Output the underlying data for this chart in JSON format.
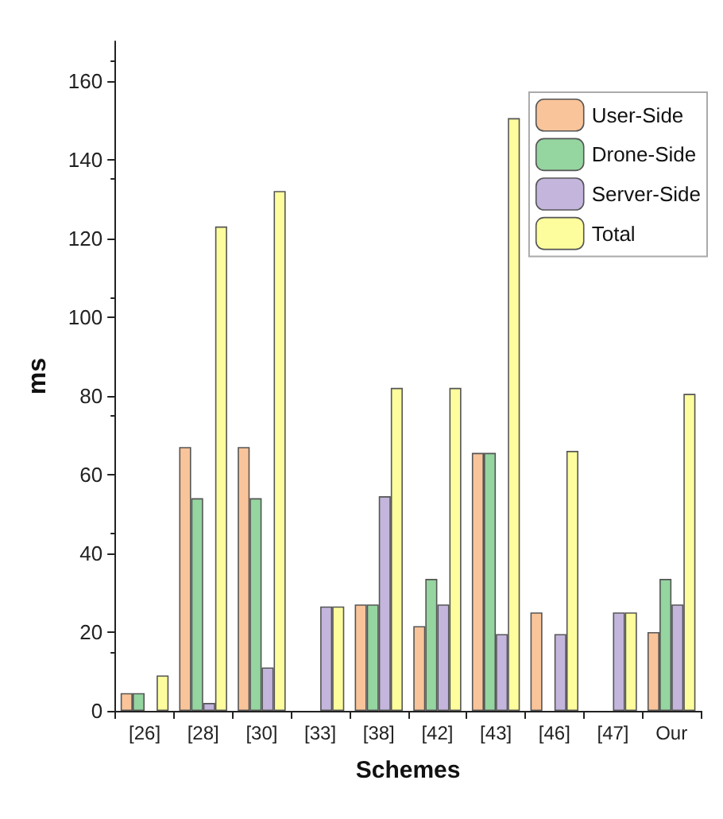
{
  "chart_data": {
    "type": "bar",
    "xlabel": "Schemes",
    "ylabel": "ms",
    "categories": [
      "[26]",
      "[28]",
      "[30]",
      "[33]",
      "[38]",
      "[42]",
      "[43]",
      "[46]",
      "[47]",
      "Our"
    ],
    "series": [
      {
        "name": "User-Side",
        "color": "#f9c49a",
        "values": [
          4.5,
          67,
          67,
          null,
          27,
          21.5,
          65.5,
          25,
          null,
          20
        ]
      },
      {
        "name": "Drone-Side",
        "color": "#95d5a0",
        "values": [
          4.5,
          54,
          54,
          null,
          27,
          33.5,
          65.5,
          null,
          null,
          33.5
        ]
      },
      {
        "name": "Server-Side",
        "color": "#c3b5dc",
        "values": [
          null,
          2,
          11,
          26.5,
          54.5,
          27,
          19.5,
          19.5,
          25,
          27
        ]
      },
      {
        "name": "Total",
        "color": "#fdfd9d",
        "values": [
          9,
          123,
          132,
          26.5,
          82,
          82,
          150.5,
          66,
          25,
          80.5
        ]
      }
    ],
    "ylim": [
      0,
      170
    ],
    "yticks": [
      0,
      20,
      40,
      60,
      80,
      100,
      120,
      140,
      160
    ],
    "grid": false,
    "legend": "top right"
  }
}
